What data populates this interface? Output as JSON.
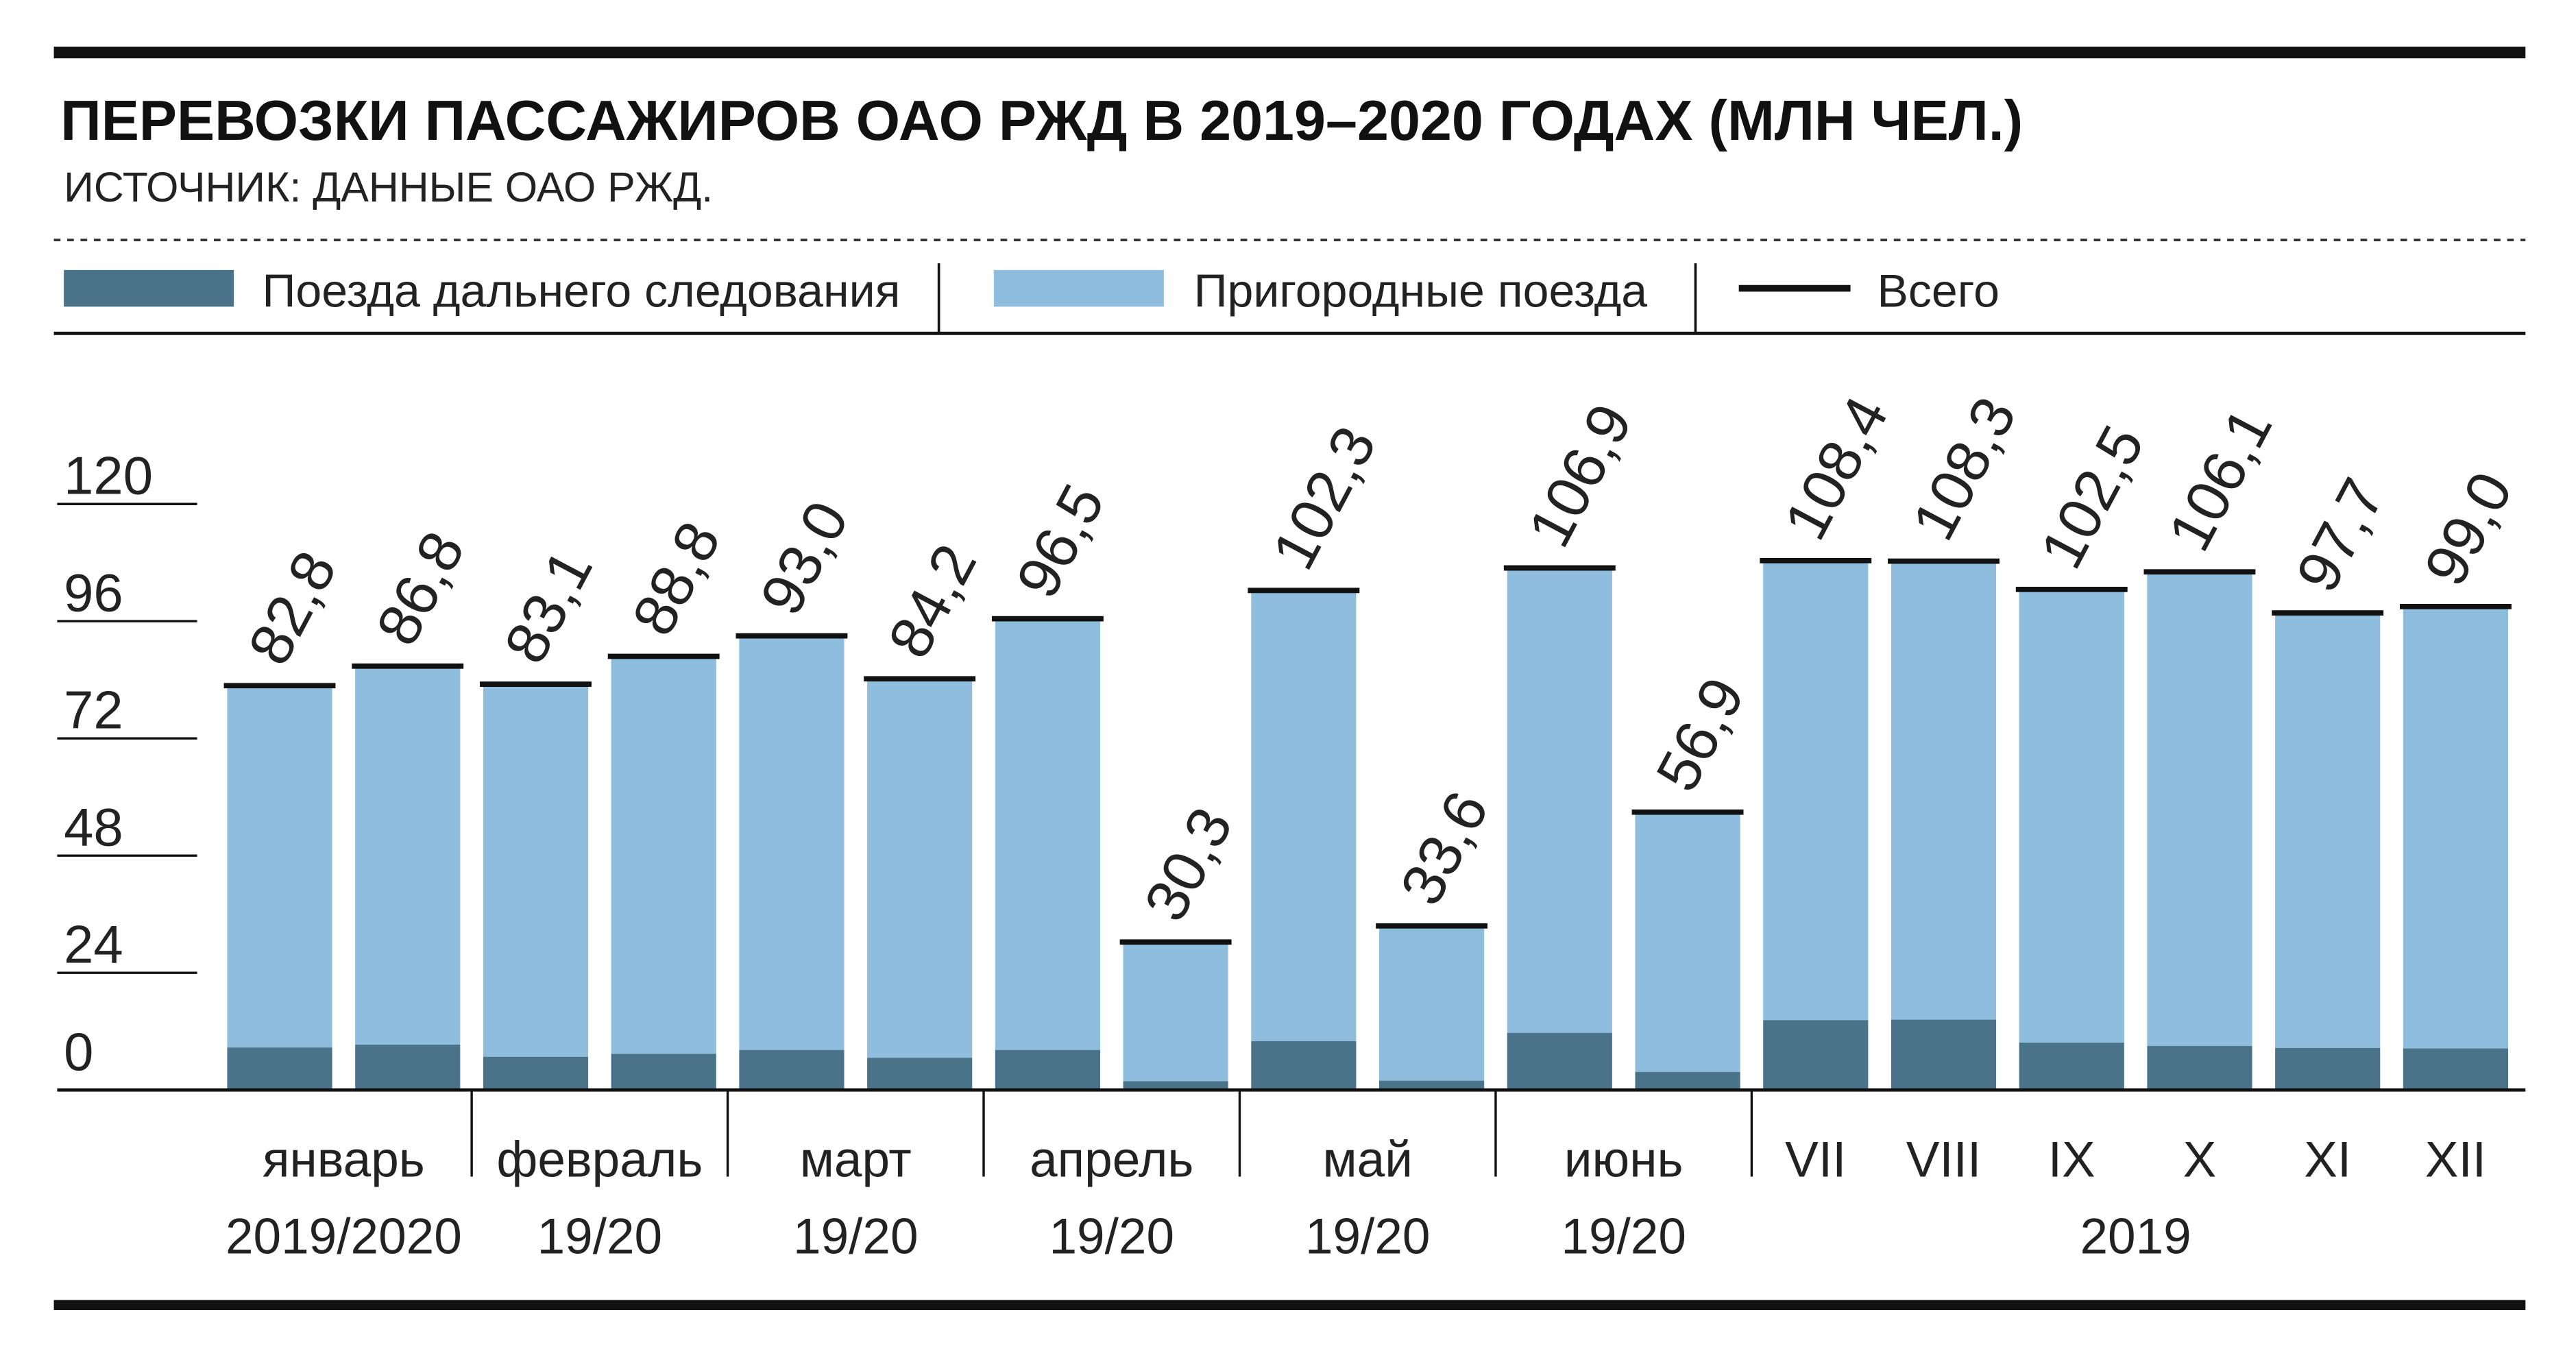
{
  "colors": {
    "long_distance": "#4a7389",
    "suburban": "#8ebdde",
    "total_line": "#111111",
    "rule": "#111111",
    "text": "#222222"
  },
  "chart_data": {
    "type": "bar",
    "title": "ПЕРЕВОЗКИ ПАССАЖИРОВ ОАО РЖД В 2019–2020 ГОДАХ (МЛН ЧЕЛ.)",
    "subtitle": "ИСТОЧНИК: ДАННЫЕ ОАО РЖД.",
    "legend": [
      "Поезда дальнего следования",
      "Пригородные поезда",
      "Всего"
    ],
    "stacked": true,
    "ylim": [
      0,
      120
    ],
    "yticks": [
      "120",
      "96",
      "72",
      "48",
      "24",
      "0"
    ],
    "ytick_values": [
      120,
      96,
      72,
      48,
      24,
      0
    ],
    "series": [
      {
        "name": "Поезда дальнего следования",
        "values": [
          8.7,
          9.3,
          6.8,
          7.4,
          8.2,
          6.6,
          8.2,
          1.8,
          10.0,
          1.9,
          11.7,
          3.7,
          14.3,
          14.4,
          9.7,
          9.0,
          8.6,
          8.5
        ]
      },
      {
        "name": "Пригородные поезда",
        "values": [
          74.1,
          77.5,
          76.3,
          81.4,
          84.8,
          77.6,
          88.3,
          28.5,
          92.3,
          31.7,
          95.2,
          53.2,
          94.1,
          93.9,
          92.8,
          97.1,
          89.1,
          90.5
        ]
      }
    ],
    "totals": [
      82.8,
      86.8,
      83.1,
      88.8,
      93.0,
      84.2,
      96.5,
      30.3,
      102.3,
      33.6,
      106.9,
      56.9,
      108.4,
      108.3,
      102.5,
      106.1,
      97.7,
      99.0
    ],
    "total_labels": [
      "82,8",
      "86,8",
      "83,1",
      "88,8",
      "93,0",
      "84,2",
      "96,5",
      "30,3",
      "102,3",
      "33,6",
      "106,9",
      "56,9",
      "108,4",
      "108,3",
      "102,5",
      "106,1",
      "97,7",
      "99,0"
    ],
    "category_groups": [
      {
        "line1": "январь",
        "line2": "2019/2020",
        "bars": 2
      },
      {
        "line1": "февраль",
        "line2": "19/20",
        "bars": 2
      },
      {
        "line1": "март",
        "line2": "19/20",
        "bars": 2
      },
      {
        "line1": "апрель",
        "line2": "19/20",
        "bars": 2
      },
      {
        "line1": "май",
        "line2": "19/20",
        "bars": 2
      },
      {
        "line1": "июнь",
        "line2": "19/20",
        "bars": 2
      },
      {
        "line1": "VII",
        "line2": "",
        "bars": 1
      },
      {
        "line1": "VIII",
        "line2": "",
        "bars": 1
      },
      {
        "line1": "IX",
        "line2": "",
        "bars": 1
      },
      {
        "line1": "X",
        "line2": "",
        "bars": 1
      },
      {
        "line1": "XI",
        "line2": "",
        "bars": 1
      },
      {
        "line1": "XII",
        "line2": "",
        "bars": 1
      }
    ],
    "year_label": "2019"
  }
}
